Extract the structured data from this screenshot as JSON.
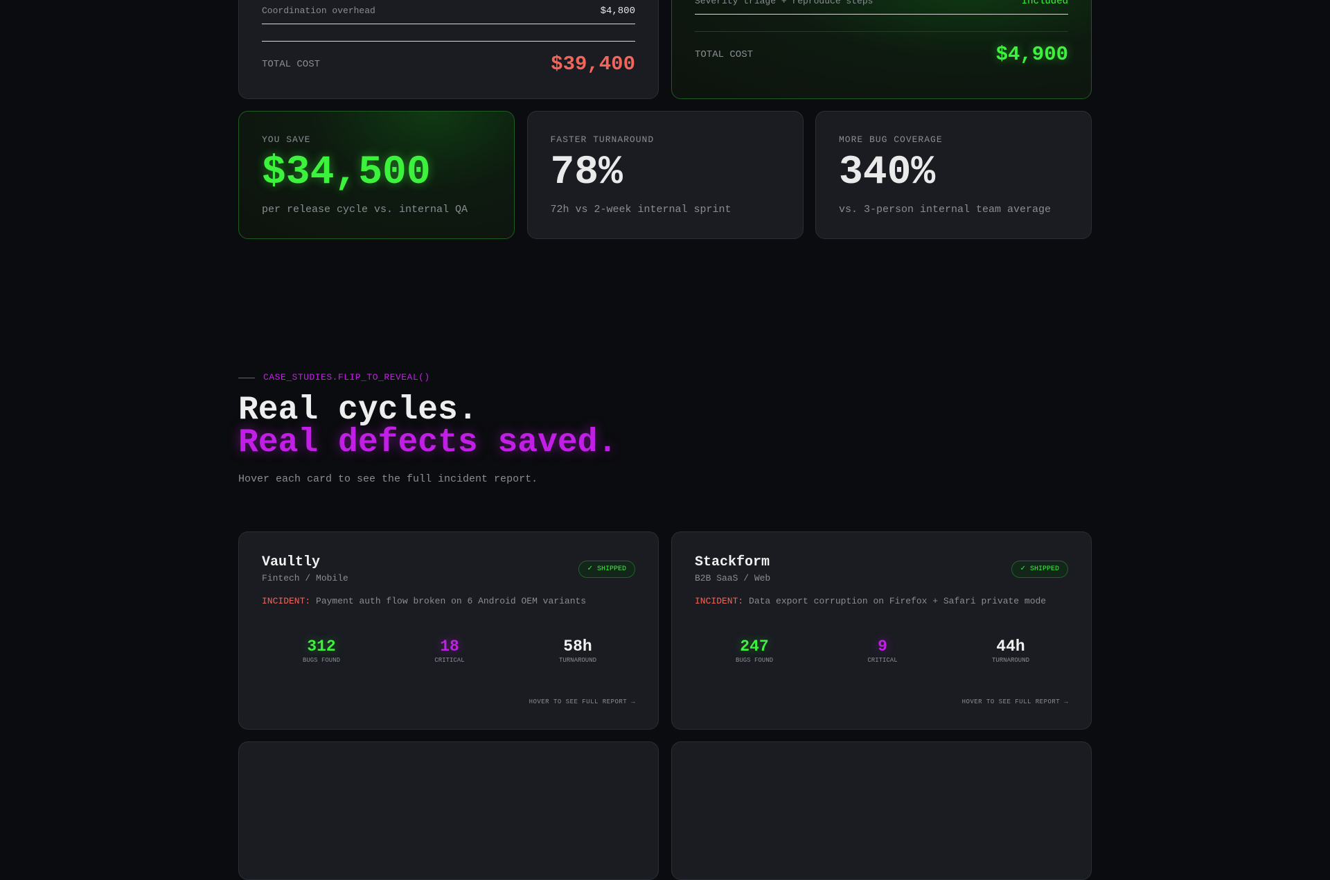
{
  "cost_comparison": {
    "internal": {
      "rows": [
        {
          "label": "Coordination overhead",
          "value": "$4,800"
        }
      ],
      "total_label": "TOTAL COST",
      "total": "$39,400"
    },
    "service": {
      "rows": [
        {
          "label": "Severity triage + reproduce steps",
          "value": "Included"
        }
      ],
      "total_label": "TOTAL COST",
      "total": "$4,900"
    }
  },
  "highlights": [
    {
      "label": "YOU SAVE",
      "value": "$34,500",
      "note": "per release cycle vs. internal QA"
    },
    {
      "label": "FASTER TURNAROUND",
      "value": "78%",
      "note": "72h vs 2-week internal sprint"
    },
    {
      "label": "MORE BUG COVERAGE",
      "value": "340%",
      "note": "vs. 3-person internal team average"
    }
  ],
  "case_studies": {
    "eyebrow": "CASE_STUDIES.FLIP_TO_REVEAL()",
    "title_line1": "Real cycles.",
    "title_line2": "Real defects saved.",
    "subtitle": "Hover each card to see the full incident report.",
    "cards": [
      {
        "name": "Vaultly",
        "segment": "Fintech / Mobile",
        "badge": "✓ SHIPPED",
        "incident_label": "INCIDENT:",
        "incident": "Payment auth flow broken on 6 Android OEM variants",
        "stats": [
          {
            "value": "312",
            "label": "BUGS FOUND"
          },
          {
            "value": "18",
            "label": "CRITICAL"
          },
          {
            "value": "58h",
            "label": "TURNAROUND"
          }
        ],
        "cta": "HOVER TO SEE FULL REPORT →"
      },
      {
        "name": "Stackform",
        "segment": "B2B SaaS / Web",
        "badge": "✓ SHIPPED",
        "incident_label": "INCIDENT:",
        "incident": "Data export corruption on Firefox + Safari private mode",
        "stats": [
          {
            "value": "247",
            "label": "BUGS FOUND"
          },
          {
            "value": "9",
            "label": "CRITICAL"
          },
          {
            "value": "44h",
            "label": "TURNAROUND"
          }
        ],
        "cta": "HOVER TO SEE FULL REPORT →"
      }
    ]
  }
}
